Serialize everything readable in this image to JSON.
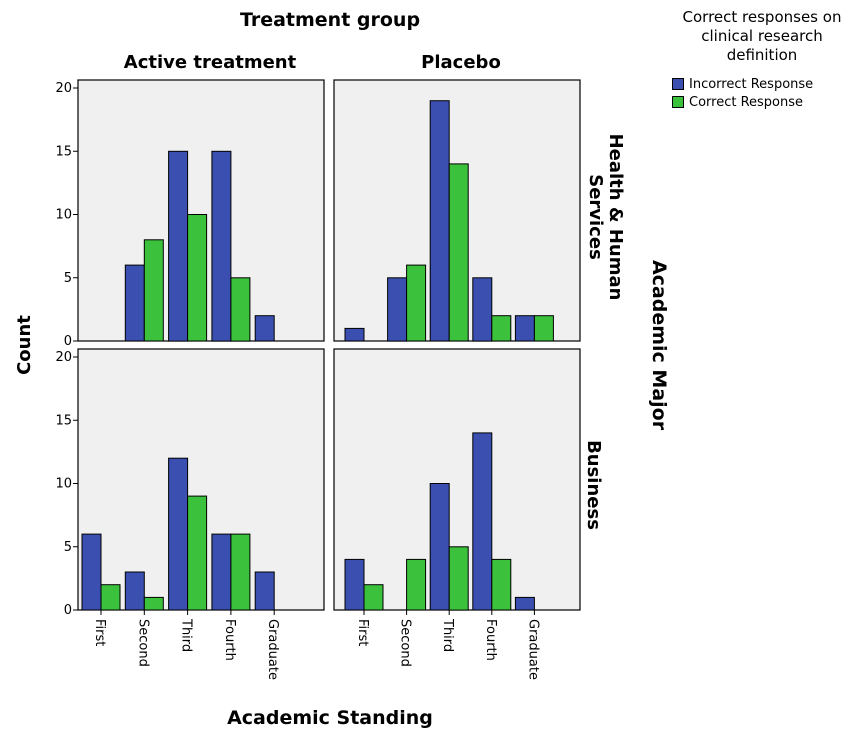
{
  "chart_data": {
    "type": "bar",
    "title": "Treatment group",
    "xlabel": "Academic Standing",
    "ylabel": "Count",
    "row_label": "Academic Major",
    "columns": [
      "Active treatment",
      "Placebo"
    ],
    "rows": [
      "Health & Human Services",
      "Business"
    ],
    "categories": [
      "First",
      "Second",
      "Third",
      "Fourth",
      "Graduate"
    ],
    "ylim": [
      0,
      20
    ],
    "yticks": [
      0,
      5,
      10,
      15,
      20
    ],
    "legend": {
      "title": "Correct responses on clinical research definition",
      "position": "top-right"
    },
    "series": [
      {
        "name": "Incorrect Response",
        "color": "#3a4fb0"
      },
      {
        "name": "Correct Response",
        "color": "#3bc13b"
      }
    ],
    "panels": [
      {
        "column": "Active treatment",
        "row": "Health & Human Services",
        "values": {
          "Incorrect Response": [
            0,
            6,
            15,
            15,
            2
          ],
          "Correct Response": [
            0,
            8,
            10,
            5,
            0
          ]
        }
      },
      {
        "column": "Placebo",
        "row": "Health & Human Services",
        "values": {
          "Incorrect Response": [
            1,
            5,
            19,
            5,
            2
          ],
          "Correct Response": [
            0,
            6,
            14,
            2,
            2
          ]
        }
      },
      {
        "column": "Active treatment",
        "row": "Business",
        "values": {
          "Incorrect Response": [
            6,
            3,
            12,
            6,
            3
          ],
          "Correct Response": [
            2,
            1,
            9,
            6,
            0
          ]
        }
      },
      {
        "column": "Placebo",
        "row": "Business",
        "values": {
          "Incorrect Response": [
            4,
            0,
            10,
            14,
            1
          ],
          "Correct Response": [
            2,
            4,
            5,
            4,
            0
          ]
        }
      }
    ]
  }
}
